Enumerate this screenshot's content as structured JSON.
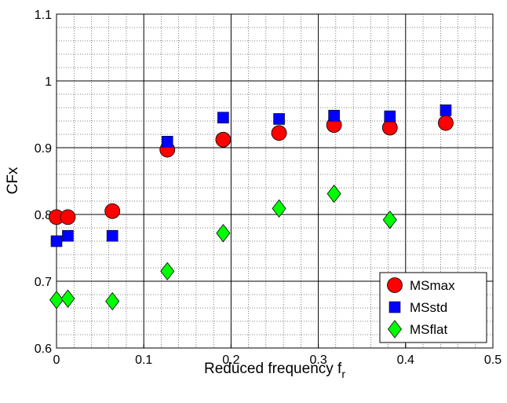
{
  "chart_data": {
    "type": "scatter",
    "title": "",
    "xlabel": "Reduced frequency f",
    "xlabel_subscript": "r",
    "ylabel": "CFx",
    "xlim": [
      0,
      0.5
    ],
    "ylim": [
      0.6,
      1.1
    ],
    "xticks": [
      0,
      0.1,
      0.2,
      0.3,
      0.4,
      0.5
    ],
    "xtick_labels": [
      "0",
      "0.1",
      "0.2",
      "0.3",
      "0.4",
      "0.5"
    ],
    "yticks": [
      0.6,
      0.7,
      0.8,
      0.9,
      1.0,
      1.1
    ],
    "ytick_labels": [
      "0.6",
      "0.7",
      "0.8",
      "0.9",
      "1",
      "1.1"
    ],
    "grid": true,
    "minor_grid": true,
    "legend_position": "bottom-right",
    "series": [
      {
        "name": "MSmax",
        "marker": "circle",
        "color": "#ff0000",
        "x": [
          0.0,
          0.013,
          0.064,
          0.127,
          0.191,
          0.255,
          0.318,
          0.382,
          0.446
        ],
        "y": [
          0.796,
          0.796,
          0.805,
          0.897,
          0.912,
          0.922,
          0.934,
          0.93,
          0.937
        ]
      },
      {
        "name": "MSstd",
        "marker": "square",
        "color": "#0000ff",
        "x": [
          0.0,
          0.013,
          0.064,
          0.127,
          0.191,
          0.255,
          0.318,
          0.382,
          0.446
        ],
        "y": [
          0.76,
          0.768,
          0.768,
          0.909,
          0.945,
          0.943,
          0.948,
          0.947,
          0.956
        ]
      },
      {
        "name": "MSflat",
        "marker": "diamond",
        "color": "#00ff00",
        "x": [
          0.0,
          0.013,
          0.064,
          0.127,
          0.191,
          0.255,
          0.318,
          0.382
        ],
        "y": [
          0.672,
          0.674,
          0.67,
          0.715,
          0.772,
          0.809,
          0.831,
          0.792
        ]
      }
    ]
  }
}
